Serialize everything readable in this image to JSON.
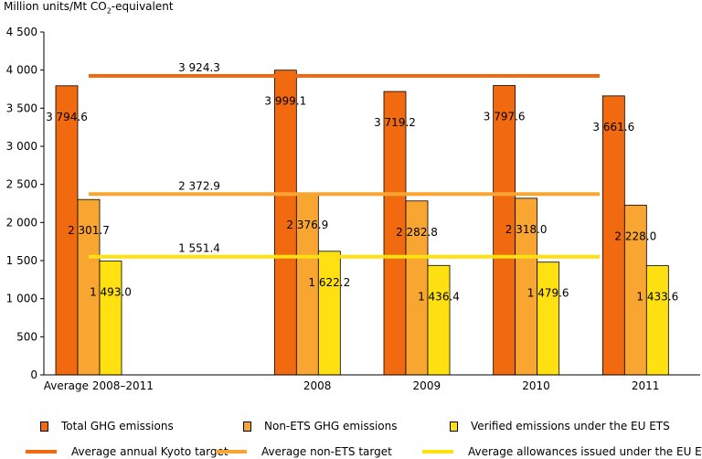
{
  "chart_data": {
    "type": "bar",
    "ylabel_prefix": "Million units/Mt CO",
    "ylabel_sub": "2",
    "ylabel_suffix": "-equivalent",
    "ylim": [
      0,
      4500
    ],
    "yticks": [
      0,
      500,
      1000,
      1500,
      2000,
      2500,
      3000,
      3500,
      4000,
      4500
    ],
    "ytick_labels": [
      "0",
      "500",
      "1 000",
      "1 500",
      "2 000",
      "2 500",
      "3 000",
      "3 500",
      "4 000",
      "4 500"
    ],
    "categories": [
      "Average 2008–2011",
      "",
      "2008",
      "2009",
      "2010",
      "2011"
    ],
    "series": [
      {
        "name": "Total GHG emissions",
        "color": "#f26a10",
        "values": [
          3794.6,
          null,
          3999.1,
          3719.2,
          3797.6,
          3661.6
        ],
        "labels": [
          "3 794.6",
          "",
          "3 999.1",
          "3 719.2",
          "3 797.6",
          "3 661.6"
        ]
      },
      {
        "name": "Non-ETS GHG emissions",
        "color": "#f9a531",
        "values": [
          2301.7,
          null,
          2376.9,
          2282.8,
          2318.0,
          2228.0
        ],
        "labels": [
          "2 301.7",
          "",
          "2 376.9",
          "2 282.8",
          "2 318.0",
          "2 228.0"
        ]
      },
      {
        "name": "Verified emissions under the EU ETS",
        "color": "#ffe010",
        "values": [
          1493.0,
          null,
          1622.2,
          1436.4,
          1479.6,
          1433.6
        ],
        "labels": [
          "1 493.0",
          "",
          "1 622.2",
          "1 436.4",
          "1 479.6",
          "1 433.6"
        ]
      }
    ],
    "reference_lines": [
      {
        "name": "Average annual Kyoto target",
        "value": 3924.3,
        "label": "3 924.3",
        "color": "#f26a10"
      },
      {
        "name": "Average non-ETS target",
        "value": 2372.9,
        "label": "2 372.9",
        "color": "#f9a531"
      },
      {
        "name": "Average allowances issued under the EU ETS",
        "value": 1551.4,
        "label": "1 551.4",
        "color": "#ffe010"
      }
    ],
    "grid": false,
    "legend_position": "bottom"
  }
}
